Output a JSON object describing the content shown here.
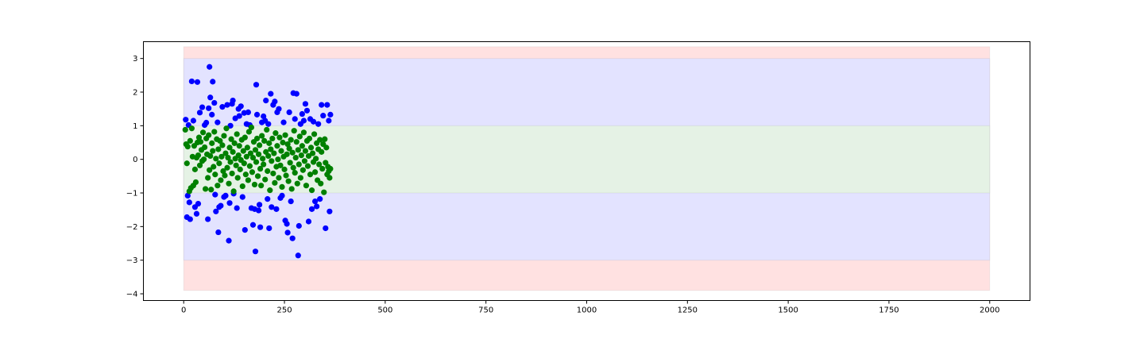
{
  "chart_data": {
    "type": "scatter",
    "title": "",
    "xlabel": "",
    "ylabel": "",
    "xlim": [
      -100,
      2100
    ],
    "ylim": [
      -4.2,
      3.5
    ],
    "x_ticks": [
      0,
      250,
      500,
      750,
      1000,
      1250,
      1500,
      1750,
      2000
    ],
    "x_tick_labels": [
      "0",
      "250",
      "500",
      "750",
      "1000",
      "1250",
      "1500",
      "1750",
      "2000"
    ],
    "y_ticks": [
      3,
      2,
      1,
      0,
      -1,
      -2,
      -3,
      -4
    ],
    "y_tick_labels": [
      "3",
      "2",
      "1",
      "0",
      "−1",
      "−2",
      "−3",
      "−4"
    ],
    "grid": false,
    "bands": [
      {
        "x_range": [
          0,
          2000
        ],
        "y_range": [
          -3.9,
          3.35
        ],
        "color": "#ffe1e1"
      },
      {
        "x_range": [
          0,
          2000
        ],
        "y_range": [
          -3.0,
          3.0
        ],
        "color": "#e3e3ff"
      },
      {
        "x_range": [
          0,
          2000
        ],
        "y_range": [
          -1.0,
          1.0
        ],
        "color": "#e5f2e5"
      }
    ],
    "series": [
      {
        "color": "#0000ff",
        "points": [
          [
            5,
            1.18
          ],
          [
            8,
            -1.72
          ],
          [
            10,
            -1.08
          ],
          [
            12,
            1.02
          ],
          [
            14,
            -1.28
          ],
          [
            16,
            -1.78
          ],
          [
            20,
            2.32
          ],
          [
            24,
            1.15
          ],
          [
            28,
            -1.42
          ],
          [
            32,
            -1.62
          ],
          [
            34,
            2.3
          ],
          [
            36,
            -1.32
          ],
          [
            40,
            1.39
          ],
          [
            46,
            1.55
          ],
          [
            52,
            1.02
          ],
          [
            56,
            1.09
          ],
          [
            60,
            -1.78
          ],
          [
            62,
            1.52
          ],
          [
            64,
            2.75
          ],
          [
            66,
            1.84
          ],
          [
            70,
            1.33
          ],
          [
            72,
            2.31
          ],
          [
            76,
            1.68
          ],
          [
            78,
            -1.05
          ],
          [
            80,
            -1.55
          ],
          [
            84,
            1.1
          ],
          [
            86,
            -2.17
          ],
          [
            88,
            -1.42
          ],
          [
            92,
            -1.38
          ],
          [
            96,
            1.56
          ],
          [
            100,
            -1.12
          ],
          [
            104,
            -1.08
          ],
          [
            108,
            1.62
          ],
          [
            112,
            -2.42
          ],
          [
            114,
            -1.3
          ],
          [
            116,
            1.0
          ],
          [
            120,
            1.65
          ],
          [
            122,
            1.75
          ],
          [
            124,
            -1.02
          ],
          [
            128,
            1.22
          ],
          [
            132,
            -1.45
          ],
          [
            136,
            1.5
          ],
          [
            138,
            1.29
          ],
          [
            142,
            1.58
          ],
          [
            146,
            -1.12
          ],
          [
            150,
            1.38
          ],
          [
            152,
            -2.1
          ],
          [
            156,
            1.05
          ],
          [
            160,
            1.4
          ],
          [
            164,
            1.02
          ],
          [
            168,
            -1.45
          ],
          [
            172,
            -1.95
          ],
          [
            176,
            -1.48
          ],
          [
            178,
            -2.74
          ],
          [
            180,
            2.22
          ],
          [
            182,
            1.33
          ],
          [
            186,
            -1.52
          ],
          [
            188,
            -1.35
          ],
          [
            190,
            -2.02
          ],
          [
            194,
            1.1
          ],
          [
            198,
            1.28
          ],
          [
            202,
            1.15
          ],
          [
            204,
            1.75
          ],
          [
            208,
            -1.18
          ],
          [
            210,
            1.05
          ],
          [
            212,
            -2.05
          ],
          [
            216,
            1.95
          ],
          [
            218,
            -1.42
          ],
          [
            222,
            1.62
          ],
          [
            226,
            1.72
          ],
          [
            230,
            -1.48
          ],
          [
            232,
            1.4
          ],
          [
            236,
            1.5
          ],
          [
            240,
            -1.15
          ],
          [
            244,
            -1.08
          ],
          [
            248,
            1.1
          ],
          [
            252,
            -1.82
          ],
          [
            256,
            -1.92
          ],
          [
            258,
            -2.18
          ],
          [
            262,
            1.4
          ],
          [
            266,
            -1.25
          ],
          [
            270,
            -2.35
          ],
          [
            272,
            1.97
          ],
          [
            276,
            1.2
          ],
          [
            280,
            1.95
          ],
          [
            284,
            -2.86
          ],
          [
            286,
            -1.98
          ],
          [
            290,
            1.05
          ],
          [
            294,
            1.35
          ],
          [
            298,
            1.15
          ],
          [
            302,
            1.65
          ],
          [
            306,
            1.45
          ],
          [
            310,
            -1.85
          ],
          [
            314,
            1.2
          ],
          [
            318,
            -1.48
          ],
          [
            322,
            1.12
          ],
          [
            326,
            -1.25
          ],
          [
            330,
            -1.4
          ],
          [
            334,
            1.05
          ],
          [
            338,
            -1.18
          ],
          [
            342,
            1.62
          ],
          [
            346,
            1.3
          ],
          [
            352,
            -2.05
          ],
          [
            356,
            1.62
          ],
          [
            360,
            1.15
          ],
          [
            362,
            -1.55
          ],
          [
            364,
            1.33
          ]
        ]
      },
      {
        "color": "#008000",
        "points": [
          [
            4,
            0.88
          ],
          [
            6,
            0.45
          ],
          [
            8,
            -0.12
          ],
          [
            10,
            0.38
          ],
          [
            14,
            -0.95
          ],
          [
            16,
            0.55
          ],
          [
            18,
            -0.85
          ],
          [
            20,
            0.92
          ],
          [
            22,
            0.08
          ],
          [
            24,
            -0.78
          ],
          [
            26,
            0.4
          ],
          [
            28,
            -0.3
          ],
          [
            30,
            -0.68
          ],
          [
            32,
            0.05
          ],
          [
            34,
            0.5
          ],
          [
            36,
            0.12
          ],
          [
            38,
            0.65
          ],
          [
            40,
            -0.18
          ],
          [
            42,
            0.52
          ],
          [
            44,
            0.28
          ],
          [
            46,
            -0.05
          ],
          [
            48,
            0.8
          ],
          [
            50,
            0.0
          ],
          [
            52,
            0.36
          ],
          [
            54,
            -0.88
          ],
          [
            56,
            0.62
          ],
          [
            58,
            0.15
          ],
          [
            60,
            -0.55
          ],
          [
            62,
            0.72
          ],
          [
            64,
            -0.32
          ],
          [
            66,
            0.1
          ],
          [
            68,
            -0.9
          ],
          [
            70,
            0.48
          ],
          [
            72,
            0.25
          ],
          [
            74,
            -0.22
          ],
          [
            76,
            0.82
          ],
          [
            78,
            -0.45
          ],
          [
            80,
            0.02
          ],
          [
            82,
            0.6
          ],
          [
            84,
            -0.78
          ],
          [
            86,
            0.3
          ],
          [
            88,
            -0.12
          ],
          [
            90,
            0.55
          ],
          [
            92,
            -0.62
          ],
          [
            94,
            0.08
          ],
          [
            96,
            0.42
          ],
          [
            98,
            -0.35
          ],
          [
            100,
            0.7
          ],
          [
            102,
            -0.48
          ],
          [
            104,
            0.18
          ],
          [
            106,
            0.92
          ],
          [
            108,
            -0.25
          ],
          [
            110,
            0.05
          ],
          [
            112,
            -0.72
          ],
          [
            114,
            0.35
          ],
          [
            116,
            -0.08
          ],
          [
            118,
            0.6
          ],
          [
            120,
            -0.42
          ],
          [
            122,
            0.22
          ],
          [
            124,
            -0.95
          ],
          [
            126,
            0.48
          ],
          [
            128,
            0.02
          ],
          [
            130,
            -0.18
          ],
          [
            132,
            0.75
          ],
          [
            134,
            -0.55
          ],
          [
            136,
            0.12
          ],
          [
            138,
            0.4
          ],
          [
            140,
            -0.3
          ],
          [
            142,
            -0.02
          ],
          [
            144,
            0.58
          ],
          [
            146,
            -0.8
          ],
          [
            148,
            0.25
          ],
          [
            150,
            -0.12
          ],
          [
            152,
            0.65
          ],
          [
            154,
            -0.45
          ],
          [
            156,
            0.08
          ],
          [
            158,
            0.35
          ],
          [
            160,
            -0.62
          ],
          [
            162,
            0.82
          ],
          [
            164,
            -0.2
          ],
          [
            166,
            0.18
          ],
          [
            168,
            0.95
          ],
          [
            170,
            -0.38
          ],
          [
            172,
            0.05
          ],
          [
            174,
            0.52
          ],
          [
            176,
            -0.75
          ],
          [
            178,
            0.28
          ],
          [
            180,
            -0.08
          ],
          [
            182,
            0.62
          ],
          [
            184,
            -0.5
          ],
          [
            186,
            0.15
          ],
          [
            188,
            0.42
          ],
          [
            190,
            -0.28
          ],
          [
            192,
            -0.78
          ],
          [
            194,
            0.7
          ],
          [
            196,
            0.02
          ],
          [
            198,
            -0.15
          ],
          [
            200,
            0.55
          ],
          [
            202,
            -0.6
          ],
          [
            204,
            0.22
          ],
          [
            206,
            0.88
          ],
          [
            208,
            -0.35
          ],
          [
            210,
            0.1
          ],
          [
            212,
            0.48
          ],
          [
            214,
            -0.92
          ],
          [
            216,
            0.3
          ],
          [
            218,
            -0.05
          ],
          [
            220,
            0.62
          ],
          [
            222,
            -0.42
          ],
          [
            224,
            0.18
          ],
          [
            226,
            -0.7
          ],
          [
            228,
            0.78
          ],
          [
            230,
            -0.22
          ],
          [
            232,
            0.4
          ],
          [
            234,
            0.0
          ],
          [
            236,
            -0.55
          ],
          [
            238,
            0.65
          ],
          [
            240,
            -0.18
          ],
          [
            242,
            0.25
          ],
          [
            244,
            -0.82
          ],
          [
            246,
            0.5
          ],
          [
            248,
            0.08
          ],
          [
            250,
            -0.3
          ],
          [
            252,
            0.72
          ],
          [
            254,
            -0.48
          ],
          [
            256,
            0.15
          ],
          [
            258,
            0.45
          ],
          [
            260,
            -0.65
          ],
          [
            262,
            0.32
          ],
          [
            264,
            -0.1
          ],
          [
            266,
            0.58
          ],
          [
            268,
            -0.88
          ],
          [
            270,
            0.2
          ],
          [
            272,
            -0.25
          ],
          [
            274,
            0.85
          ],
          [
            276,
            -0.4
          ],
          [
            278,
            0.05
          ],
          [
            280,
            0.52
          ],
          [
            282,
            -0.72
          ],
          [
            284,
            0.28
          ],
          [
            286,
            -0.15
          ],
          [
            288,
            0.68
          ],
          [
            290,
            -0.55
          ],
          [
            292,
            0.12
          ],
          [
            294,
            0.4
          ],
          [
            296,
            -0.32
          ],
          [
            298,
            0.8
          ],
          [
            300,
            -0.05
          ],
          [
            302,
            0.25
          ],
          [
            304,
            -0.78
          ],
          [
            306,
            0.55
          ],
          [
            308,
            -0.2
          ],
          [
            310,
            0.1
          ],
          [
            312,
            0.62
          ],
          [
            314,
            -0.45
          ],
          [
            316,
            0.35
          ],
          [
            318,
            -0.92
          ],
          [
            320,
            0.18
          ],
          [
            322,
            -0.08
          ],
          [
            324,
            0.75
          ],
          [
            326,
            -0.38
          ],
          [
            328,
            0.02
          ],
          [
            330,
            0.48
          ],
          [
            332,
            -0.62
          ],
          [
            334,
            0.3
          ],
          [
            336,
            -0.15
          ],
          [
            338,
            0.58
          ],
          [
            340,
            -0.72
          ],
          [
            342,
            0.22
          ],
          [
            344,
            -0.28
          ],
          [
            346,
            0.45
          ],
          [
            348,
            -0.98
          ],
          [
            350,
            0.6
          ],
          [
            352,
            -0.1
          ],
          [
            354,
            0.35
          ],
          [
            356,
            -0.45
          ],
          [
            358,
            -0.22
          ],
          [
            360,
            -0.35
          ],
          [
            362,
            -0.55
          ],
          [
            364,
            -0.28
          ]
        ]
      }
    ]
  }
}
